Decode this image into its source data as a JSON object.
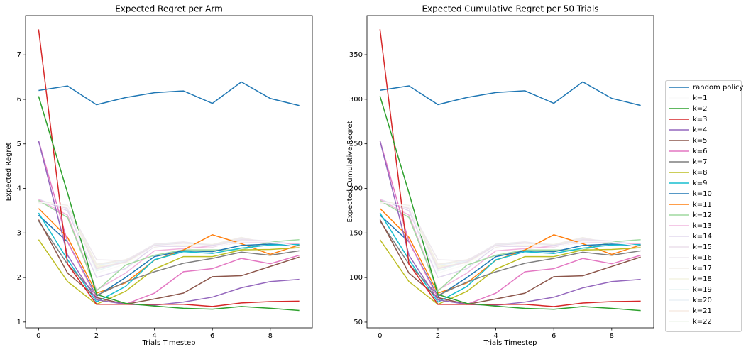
{
  "chart_data": [
    {
      "type": "line",
      "title": "Expected Regret per Arm",
      "xlabel": "Trials Timestep",
      "ylabel": "Expected Regret",
      "x": [
        0,
        1,
        2,
        3,
        4,
        5,
        6,
        7,
        8,
        9
      ],
      "xlim": [
        -0.45,
        9.45
      ],
      "xticks": [
        0,
        2,
        4,
        6,
        8
      ],
      "ylim": [
        0.87,
        7.88
      ],
      "yticks": [
        1,
        2,
        3,
        4,
        5,
        6,
        7
      ],
      "series": [
        {
          "name": "random policy",
          "color": "#1f77b4",
          "values": [
            6.2,
            6.3,
            5.88,
            6.04,
            6.15,
            6.19,
            5.91,
            6.39,
            6.02,
            5.86
          ]
        },
        {
          "name": "k=1",
          "color": "#fafafa",
          "values": [
            3.7,
            3.6,
            2.1,
            2.3,
            2.7,
            2.75,
            2.7,
            2.8,
            2.8,
            2.7
          ]
        },
        {
          "name": "k=2",
          "color": "#2ca02c",
          "values": [
            6.07,
            3.9,
            1.62,
            1.42,
            1.36,
            1.31,
            1.29,
            1.35,
            1.31,
            1.26
          ]
        },
        {
          "name": "k=3",
          "color": "#d62728",
          "values": [
            7.57,
            2.3,
            1.4,
            1.4,
            1.4,
            1.4,
            1.35,
            1.43,
            1.46,
            1.47
          ]
        },
        {
          "name": "k=4",
          "color": "#9467bd",
          "values": [
            5.07,
            2.5,
            1.5,
            1.4,
            1.38,
            1.45,
            1.56,
            1.77,
            1.91,
            1.96
          ]
        },
        {
          "name": "k=5",
          "color": "#8c564b",
          "values": [
            3.3,
            2.1,
            1.55,
            1.4,
            1.52,
            1.65,
            2.02,
            2.04,
            2.25,
            2.46
          ]
        },
        {
          "name": "k=6",
          "color": "#e377c2",
          "values": [
            5.07,
            2.8,
            1.55,
            1.4,
            1.65,
            2.13,
            2.2,
            2.43,
            2.31,
            2.5
          ]
        },
        {
          "name": "k=7",
          "color": "#7f7f7f",
          "values": [
            3.27,
            2.3,
            1.6,
            1.9,
            2.13,
            2.32,
            2.43,
            2.57,
            2.5,
            2.6
          ]
        },
        {
          "name": "k=8",
          "color": "#bcbd22",
          "values": [
            2.85,
            1.91,
            1.4,
            1.69,
            2.19,
            2.47,
            2.47,
            2.62,
            2.63,
            2.67
          ]
        },
        {
          "name": "k=9",
          "color": "#17becf",
          "values": [
            3.45,
            2.4,
            1.45,
            1.8,
            2.4,
            2.58,
            2.54,
            2.66,
            2.73,
            2.74
          ]
        },
        {
          "name": "k=10",
          "color": "#1f77b4",
          "values": [
            3.4,
            2.8,
            1.58,
            2.0,
            2.47,
            2.6,
            2.58,
            2.72,
            2.75,
            2.71
          ]
        },
        {
          "name": "k=11",
          "color": "#ff7f0e",
          "values": [
            3.55,
            2.9,
            1.65,
            1.88,
            2.39,
            2.62,
            2.96,
            2.76,
            2.52,
            2.73
          ]
        },
        {
          "name": "k=12",
          "color": "#9fd89f",
          "values": [
            3.73,
            3.35,
            1.7,
            2.28,
            2.5,
            2.62,
            2.62,
            2.62,
            2.8,
            2.85
          ]
        },
        {
          "name": "k=13",
          "color": "#f0b5dd",
          "values": [
            3.75,
            3.4,
            1.72,
            2.1,
            2.6,
            2.65,
            2.7,
            2.8,
            2.78,
            2.75
          ]
        },
        {
          "name": "k=14",
          "color": "#e2d8ee",
          "values": [
            3.76,
            3.5,
            2.0,
            2.2,
            2.7,
            2.7,
            2.72,
            2.78,
            2.8,
            2.75
          ]
        },
        {
          "name": "k=15",
          "color": "#ecdfec",
          "values": [
            3.72,
            3.55,
            2.2,
            2.35,
            2.72,
            2.76,
            2.68,
            2.85,
            2.82,
            2.7
          ]
        },
        {
          "name": "k=16",
          "color": "#eee8ee",
          "values": [
            3.7,
            3.6,
            2.4,
            2.38,
            2.75,
            2.8,
            2.72,
            2.88,
            2.78,
            2.72
          ]
        },
        {
          "name": "k=17",
          "color": "#f2eee8",
          "values": [
            3.68,
            3.62,
            2.3,
            2.4,
            2.68,
            2.78,
            2.74,
            2.9,
            2.76,
            2.68
          ]
        },
        {
          "name": "k=18",
          "color": "#f4f4e2",
          "values": [
            3.74,
            3.58,
            2.25,
            2.33,
            2.7,
            2.74,
            2.7,
            2.84,
            2.8,
            2.72
          ]
        },
        {
          "name": "k=19",
          "color": "#e6f4f4",
          "values": [
            3.71,
            3.6,
            2.15,
            2.36,
            2.73,
            2.77,
            2.71,
            2.86,
            2.79,
            2.71
          ]
        },
        {
          "name": "k=20",
          "color": "#eaf0f6",
          "values": [
            3.73,
            3.57,
            2.28,
            2.37,
            2.71,
            2.75,
            2.73,
            2.87,
            2.81,
            2.69
          ]
        },
        {
          "name": "k=21",
          "color": "#f7ece3",
          "values": [
            3.69,
            3.59,
            2.22,
            2.34,
            2.74,
            2.79,
            2.69,
            2.83,
            2.77,
            2.73
          ]
        },
        {
          "name": "k=22",
          "color": "#f0f6ee",
          "values": [
            3.72,
            3.61,
            2.18,
            2.39,
            2.69,
            2.76,
            2.72,
            2.85,
            2.8,
            2.7
          ]
        }
      ]
    },
    {
      "type": "line",
      "title": "Expected Cumulative Regret per 50 Trials",
      "xlabel": "Trials Timestep",
      "ylabel": "Expected Cumulative Regret",
      "x": [
        0,
        1,
        2,
        3,
        4,
        5,
        6,
        7,
        8,
        9
      ],
      "xlim": [
        -0.45,
        9.45
      ],
      "xticks": [
        0,
        2,
        4,
        6,
        8
      ],
      "ylim": [
        43.6,
        393.8
      ],
      "yticks": [
        50,
        100,
        150,
        200,
        250,
        300,
        350
      ],
      "series": [
        {
          "name": "random policy",
          "color": "#1f77b4",
          "values": [
            310,
            315,
            294,
            302,
            307.5,
            309.5,
            295.5,
            319.5,
            301,
            293
          ]
        },
        {
          "name": "k=1",
          "color": "#fafafa",
          "values": [
            185,
            180,
            105,
            115,
            135,
            137.5,
            135,
            140,
            140,
            135
          ]
        },
        {
          "name": "k=2",
          "color": "#2ca02c",
          "values": [
            303.5,
            195,
            81,
            71,
            68,
            65.5,
            64.5,
            67.5,
            65.5,
            63
          ]
        },
        {
          "name": "k=3",
          "color": "#d62728",
          "values": [
            378.5,
            115,
            70,
            70,
            70,
            70,
            67.5,
            71.5,
            73,
            73.5
          ]
        },
        {
          "name": "k=4",
          "color": "#9467bd",
          "values": [
            253.5,
            125,
            75,
            70,
            69,
            72.5,
            78,
            88.5,
            95.5,
            98
          ]
        },
        {
          "name": "k=5",
          "color": "#8c564b",
          "values": [
            165,
            105,
            77.5,
            70,
            76,
            82.5,
            101,
            102,
            112.5,
            123
          ]
        },
        {
          "name": "k=6",
          "color": "#e377c2",
          "values": [
            253.5,
            140,
            77.5,
            70,
            82.5,
            106.5,
            110,
            121.5,
            115.5,
            125
          ]
        },
        {
          "name": "k=7",
          "color": "#7f7f7f",
          "values": [
            163.5,
            115,
            80,
            95,
            106.5,
            116,
            121.5,
            128.5,
            125,
            130
          ]
        },
        {
          "name": "k=8",
          "color": "#bcbd22",
          "values": [
            142.5,
            95.5,
            70,
            84.5,
            109.5,
            123.5,
            123.5,
            131,
            131.5,
            133.5
          ]
        },
        {
          "name": "k=9",
          "color": "#17becf",
          "values": [
            172.5,
            120,
            72.5,
            90,
            120,
            129,
            127,
            133,
            136.5,
            137
          ]
        },
        {
          "name": "k=10",
          "color": "#1f77b4",
          "values": [
            170,
            140,
            79,
            100,
            123.5,
            130,
            129,
            136,
            137.5,
            135.5
          ]
        },
        {
          "name": "k=11",
          "color": "#ff7f0e",
          "values": [
            177.5,
            145,
            82.5,
            94,
            119.5,
            131,
            148,
            138,
            126,
            136.5
          ]
        },
        {
          "name": "k=12",
          "color": "#9fd89f",
          "values": [
            186.5,
            167.5,
            85,
            114,
            125,
            131,
            131,
            131,
            140,
            142.5
          ]
        },
        {
          "name": "k=13",
          "color": "#f0b5dd",
          "values": [
            187.5,
            170,
            86,
            105,
            130,
            132.5,
            135,
            140,
            139,
            137.5
          ]
        },
        {
          "name": "k=14",
          "color": "#e2d8ee",
          "values": [
            188,
            175,
            100,
            110,
            135,
            135,
            136,
            139,
            140,
            137.5
          ]
        },
        {
          "name": "k=15",
          "color": "#ecdfec",
          "values": [
            186,
            177.5,
            110,
            117.5,
            136,
            138,
            134,
            142.5,
            141,
            135
          ]
        },
        {
          "name": "k=16",
          "color": "#eee8ee",
          "values": [
            185,
            180,
            120,
            119,
            137.5,
            140,
            136,
            144,
            139,
            136
          ]
        },
        {
          "name": "k=17",
          "color": "#f2eee8",
          "values": [
            184,
            181,
            115,
            120,
            134,
            139,
            137,
            145,
            138,
            134
          ]
        },
        {
          "name": "k=18",
          "color": "#f4f4e2",
          "values": [
            187,
            179,
            112.5,
            116.5,
            135,
            137,
            135,
            142,
            140,
            136
          ]
        },
        {
          "name": "k=19",
          "color": "#e6f4f4",
          "values": [
            185.5,
            180,
            107.5,
            118,
            136.5,
            138.5,
            135.5,
            143,
            139.5,
            135.5
          ]
        },
        {
          "name": "k=20",
          "color": "#eaf0f6",
          "values": [
            186.5,
            178.5,
            114,
            118.5,
            135.5,
            137.5,
            136.5,
            143.5,
            140.5,
            134.5
          ]
        },
        {
          "name": "k=21",
          "color": "#f7ece3",
          "values": [
            184.5,
            179.5,
            111,
            117,
            137,
            139.5,
            134.5,
            141.5,
            138.5,
            136.5
          ]
        },
        {
          "name": "k=22",
          "color": "#f0f6ee",
          "values": [
            186,
            180.5,
            109,
            119.5,
            134.5,
            138,
            136,
            142.5,
            140,
            135
          ]
        }
      ]
    }
  ]
}
